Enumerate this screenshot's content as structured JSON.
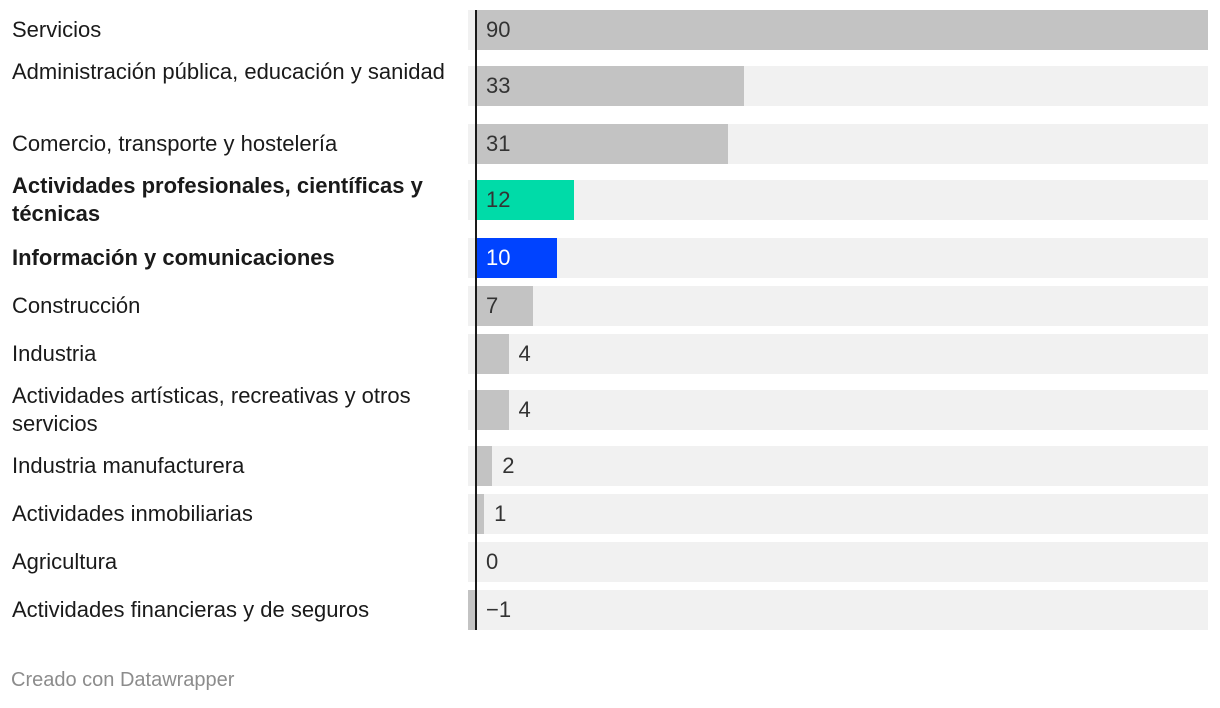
{
  "chart_data": {
    "type": "bar",
    "orientation": "horizontal",
    "title": "",
    "xlabel": "",
    "ylabel": "",
    "xlim": [
      -1,
      90
    ],
    "categories": [
      "Servicios",
      "Administración pública, educación y sanidad",
      "Comercio, transporte y hostelería",
      "Actividades profesionales, científicas y técnicas",
      "Información y comunicaciones",
      "Construcción",
      "Industria",
      "Actividades artísticas, recreativas y otros servicios",
      "Industria manufacturera",
      "Actividades inmobiliarias",
      "Agricultura",
      "Actividades financieras y de seguros"
    ],
    "values": [
      90,
      33,
      31,
      12,
      10,
      7,
      4,
      4,
      2,
      1,
      0,
      -1
    ],
    "value_labels": [
      "90",
      "33",
      "31",
      "12",
      "10",
      "7",
      "4",
      "4",
      "2",
      "1",
      "0",
      "−1"
    ],
    "highlighted": [
      false,
      false,
      false,
      true,
      true,
      false,
      false,
      false,
      false,
      false,
      false,
      false
    ],
    "bar_colors": [
      "#c3c3c3",
      "#c3c3c3",
      "#c3c3c3",
      "#00dba8",
      "#0043ff",
      "#c3c3c3",
      "#c3c3c3",
      "#c3c3c3",
      "#c3c3c3",
      "#c3c3c3",
      "#c3c3c3",
      "#c3c3c3"
    ],
    "value_label_light": [
      false,
      false,
      false,
      false,
      true,
      false,
      false,
      false,
      false,
      false,
      false,
      false
    ],
    "background_bar_color": "#f1f1f1"
  },
  "footer": {
    "credit": "Creado con Datawrapper"
  }
}
